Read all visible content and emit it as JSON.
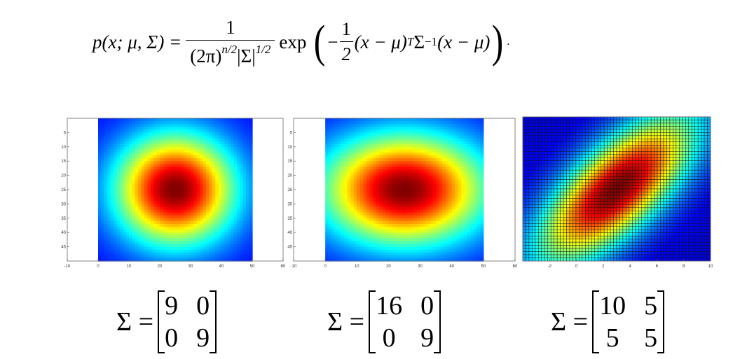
{
  "formula": {
    "lhs": "p(x; μ, Σ) =",
    "numerator": "1",
    "denominator_base": "(2π)",
    "denominator_exp1": "n/2",
    "denominator_mid": "|Σ|",
    "denominator_exp2": "1/2",
    "exp": "exp",
    "minus": "−",
    "half_num": "1",
    "half_den": "2",
    "term1": "(x − μ)",
    "term1_sup": "T",
    "sigma": "Σ",
    "sigma_sup": "−1",
    "term2": "(x − μ)",
    "trail": "."
  },
  "chart_data": [
    {
      "type": "heatmap",
      "covariance": [
        [
          9,
          0
        ],
        [
          0,
          9
        ]
      ],
      "mean": [
        25,
        25
      ],
      "xlim": [
        -10,
        60
      ],
      "ylim": [
        0,
        50
      ],
      "x_ticks": [
        "-10",
        "0",
        "10",
        "20",
        "30",
        "40",
        "50",
        "60"
      ],
      "y_ticks": [
        "5",
        "10",
        "15",
        "20",
        "25",
        "30",
        "35",
        "40",
        "45"
      ],
      "gridlines": false,
      "caption": {
        "lhs": "Σ =",
        "cells": [
          "9",
          "0",
          "0",
          "9"
        ]
      }
    },
    {
      "type": "heatmap",
      "covariance": [
        [
          16,
          0
        ],
        [
          0,
          9
        ]
      ],
      "mean": [
        25,
        25
      ],
      "xlim": [
        -10,
        60
      ],
      "ylim": [
        0,
        50
      ],
      "x_ticks": [
        "-10",
        "0",
        "10",
        "20",
        "30",
        "40",
        "50",
        "60"
      ],
      "y_ticks": [
        "5",
        "10",
        "15",
        "20",
        "25",
        "30",
        "35",
        "40",
        "45"
      ],
      "gridlines": false,
      "caption": {
        "lhs": "Σ =",
        "cells": [
          "16",
          "0",
          "0",
          "9"
        ]
      }
    },
    {
      "type": "heatmap",
      "covariance": [
        [
          10,
          5
        ],
        [
          5,
          5
        ]
      ],
      "mean": [
        3,
        3
      ],
      "xlim": [
        -4,
        10
      ],
      "ylim": [
        0,
        8
      ],
      "x_ticks": [
        "-2",
        "0",
        "2",
        "4",
        "6",
        "8",
        "10"
      ],
      "y_ticks": [],
      "gridlines": true,
      "caption": {
        "lhs": "Σ =",
        "cells": [
          "10",
          "5",
          "5",
          "5"
        ]
      }
    }
  ]
}
